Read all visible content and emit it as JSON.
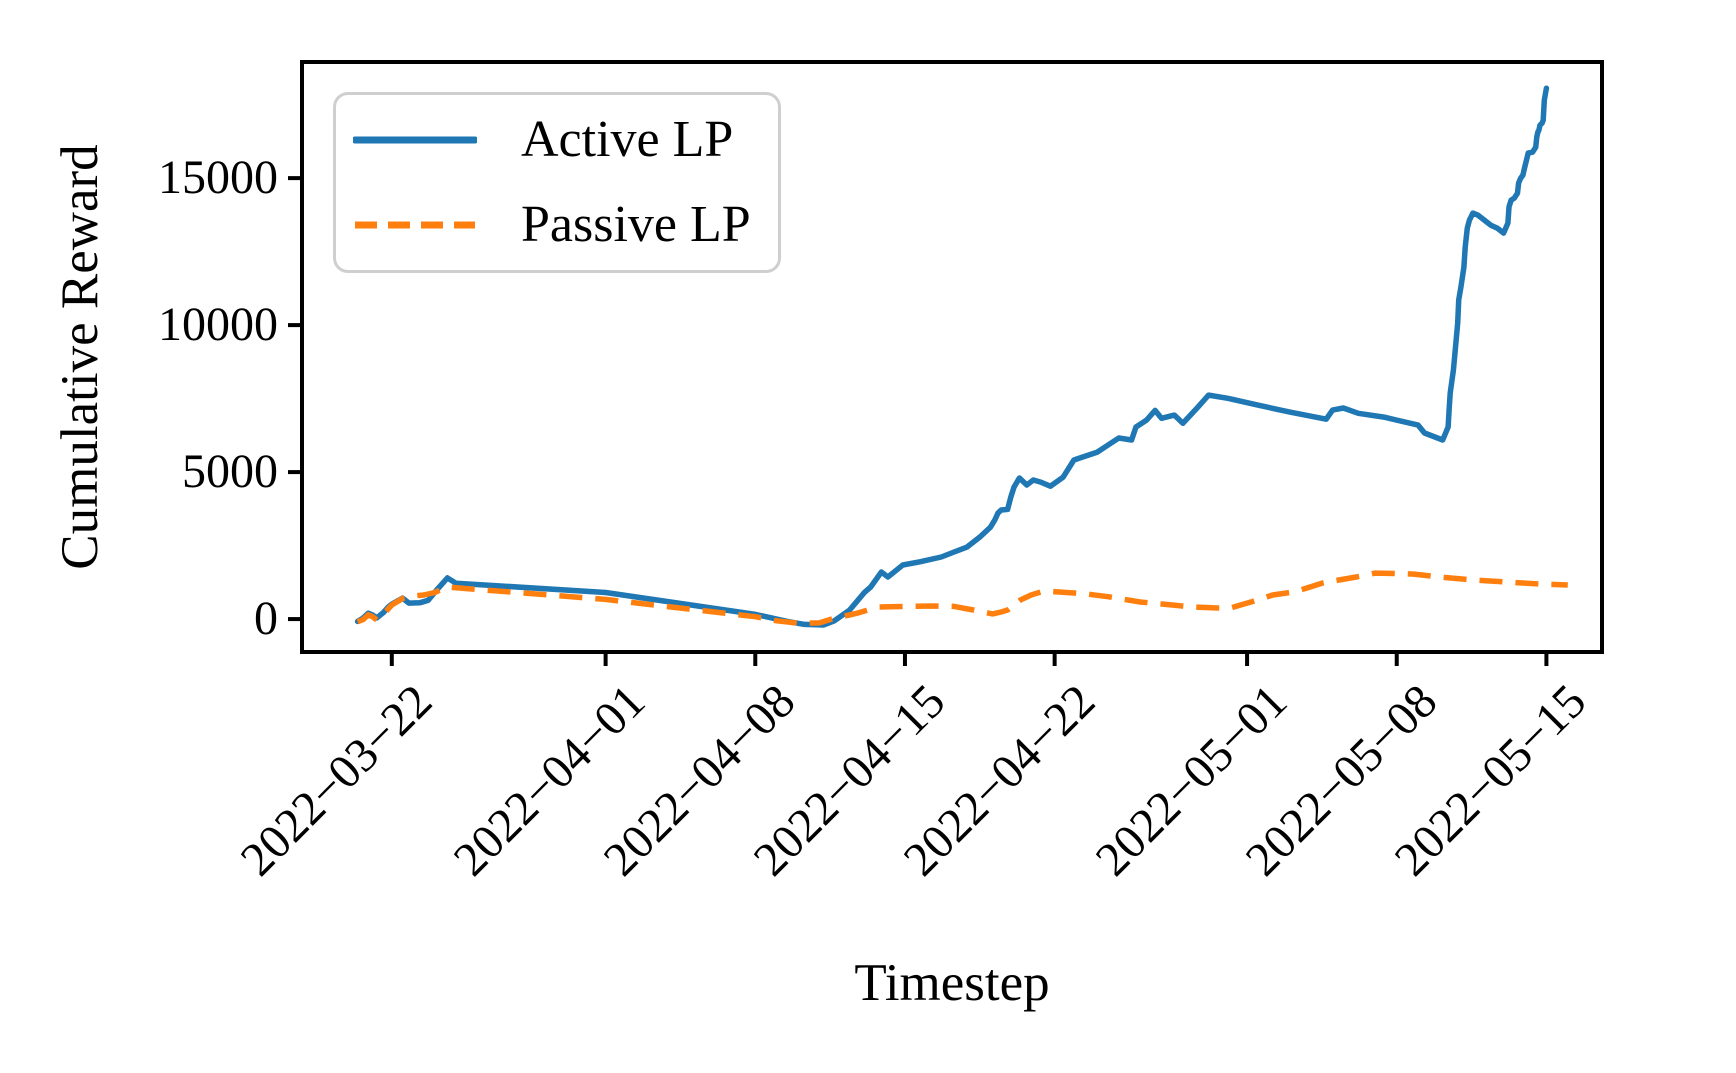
{
  "figure": {
    "xlabel": "Timestep",
    "ylabel": "Cumulative Reward",
    "background_color": "#ffffff",
    "spine_color": "#000000",
    "legend_border_color": "#cfcfcf"
  },
  "chart_data": {
    "type": "line",
    "title": "",
    "xlabel": "Timestep",
    "ylabel": "Cumulative Reward",
    "grid": false,
    "legend_position": "upper left",
    "x_unit": "days since 2022-03-22 (fractional, read from plot)",
    "x_tick_labels": [
      "2022−03−22",
      "2022−04−01",
      "2022−04−08",
      "2022−04−15",
      "2022−04−22",
      "2022−05−01",
      "2022−05−08",
      "2022−05−15"
    ],
    "y_ticks": [
      0,
      5000,
      10000,
      15000
    ],
    "xlim_days": [
      -4.2,
      56.6
    ],
    "ylim": [
      -1120,
      18950
    ],
    "series": [
      {
        "name": "Active LP",
        "color": "#1f77b4",
        "dash": "solid",
        "points": [
          [
            -1.6,
            -80
          ],
          [
            -1.35,
            30
          ],
          [
            -1.1,
            200
          ],
          [
            -0.9,
            140
          ],
          [
            -0.7,
            40
          ],
          [
            -0.4,
            220
          ],
          [
            -0.15,
            420
          ],
          [
            0,
            510
          ],
          [
            0.5,
            715
          ],
          [
            0.8,
            545
          ],
          [
            1.3,
            555
          ],
          [
            1.7,
            640
          ],
          [
            2.1,
            990
          ],
          [
            2.6,
            1400
          ],
          [
            3.0,
            1220
          ],
          [
            10,
            905
          ],
          [
            17,
            160
          ],
          [
            18.5,
            -80
          ],
          [
            19.3,
            -180
          ],
          [
            20.2,
            -200
          ],
          [
            20.7,
            -60
          ],
          [
            21.4,
            300
          ],
          [
            22.1,
            900
          ],
          [
            22.4,
            1090
          ],
          [
            22.9,
            1600
          ],
          [
            23.2,
            1430
          ],
          [
            23.9,
            1840
          ],
          [
            24.7,
            1950
          ],
          [
            25.7,
            2110
          ],
          [
            26.3,
            2280
          ],
          [
            26.9,
            2450
          ],
          [
            27.5,
            2790
          ],
          [
            28.0,
            3130
          ],
          [
            28.2,
            3370
          ],
          [
            28.35,
            3610
          ],
          [
            28.5,
            3710
          ],
          [
            28.8,
            3730
          ],
          [
            28.95,
            4150
          ],
          [
            29.1,
            4490
          ],
          [
            29.35,
            4800
          ],
          [
            29.7,
            4560
          ],
          [
            30.0,
            4730
          ],
          [
            30.35,
            4660
          ],
          [
            30.8,
            4520
          ],
          [
            31.4,
            4830
          ],
          [
            31.9,
            5410
          ],
          [
            32.3,
            5510
          ],
          [
            33.0,
            5680
          ],
          [
            33.5,
            5920
          ],
          [
            34.0,
            6160
          ],
          [
            34.6,
            6090
          ],
          [
            34.8,
            6530
          ],
          [
            35.3,
            6770
          ],
          [
            35.7,
            7100
          ],
          [
            36.0,
            6830
          ],
          [
            36.6,
            6940
          ],
          [
            37.0,
            6660
          ],
          [
            37.7,
            7210
          ],
          [
            38.2,
            7620
          ],
          [
            39.1,
            7510
          ],
          [
            40.5,
            7280
          ],
          [
            42.0,
            7040
          ],
          [
            43.7,
            6800
          ],
          [
            44.0,
            7110
          ],
          [
            44.5,
            7180
          ],
          [
            45.2,
            7000
          ],
          [
            46.4,
            6870
          ],
          [
            48.0,
            6600
          ],
          [
            48.3,
            6330
          ],
          [
            49.15,
            6090
          ],
          [
            49.4,
            6530
          ],
          [
            49.45,
            7110
          ],
          [
            49.5,
            7690
          ],
          [
            49.65,
            8470
          ],
          [
            49.75,
            9250
          ],
          [
            49.85,
            10070
          ],
          [
            49.9,
            10850
          ],
          [
            50.0,
            11290
          ],
          [
            50.14,
            11970
          ],
          [
            50.2,
            12650
          ],
          [
            50.3,
            13300
          ],
          [
            50.4,
            13570
          ],
          [
            50.56,
            13810
          ],
          [
            50.8,
            13740
          ],
          [
            51.1,
            13570
          ],
          [
            51.4,
            13400
          ],
          [
            51.7,
            13300
          ],
          [
            52.0,
            13130
          ],
          [
            52.2,
            13470
          ],
          [
            52.25,
            14020
          ],
          [
            52.35,
            14250
          ],
          [
            52.5,
            14320
          ],
          [
            52.65,
            14490
          ],
          [
            52.7,
            14830
          ],
          [
            52.8,
            15000
          ],
          [
            52.9,
            15100
          ],
          [
            52.95,
            15270
          ],
          [
            53.1,
            15710
          ],
          [
            53.15,
            15850
          ],
          [
            53.35,
            15880
          ],
          [
            53.5,
            16050
          ],
          [
            53.55,
            16400
          ],
          [
            53.6,
            16570
          ],
          [
            53.65,
            16630
          ],
          [
            53.7,
            16800
          ],
          [
            53.8,
            16870
          ],
          [
            53.85,
            16970
          ],
          [
            53.9,
            17650
          ],
          [
            54,
            18060
          ]
        ]
      },
      {
        "name": "Passive LP",
        "color": "#ff7f0e",
        "dash": "dashed",
        "points": [
          [
            -1.6,
            -90
          ],
          [
            -1.35,
            -20
          ],
          [
            -1.1,
            150
          ],
          [
            -0.9,
            80
          ],
          [
            -0.7,
            -30
          ],
          [
            -0.4,
            160
          ],
          [
            -0.15,
            360
          ],
          [
            0,
            480
          ],
          [
            0.5,
            700
          ],
          [
            1.0,
            790
          ],
          [
            1.5,
            820
          ],
          [
            2.0,
            900
          ],
          [
            2.55,
            1090
          ],
          [
            10,
            670
          ],
          [
            17,
            80
          ],
          [
            18,
            -60
          ],
          [
            19,
            -140
          ],
          [
            20,
            -130
          ],
          [
            20.7,
            30
          ],
          [
            21.4,
            140
          ],
          [
            21.8,
            205
          ],
          [
            22.4,
            340
          ],
          [
            22.8,
            410
          ],
          [
            24,
            430
          ],
          [
            25.3,
            445
          ],
          [
            26.3,
            430
          ],
          [
            27.2,
            310
          ],
          [
            27.7,
            230
          ],
          [
            28.1,
            175
          ],
          [
            28.5,
            240
          ],
          [
            28.8,
            310
          ],
          [
            29.4,
            650
          ],
          [
            29.9,
            820
          ],
          [
            30.5,
            950
          ],
          [
            31.2,
            920
          ],
          [
            32.3,
            870
          ],
          [
            33.5,
            760
          ],
          [
            35,
            580
          ],
          [
            36.5,
            480
          ],
          [
            37.4,
            410
          ],
          [
            38.5,
            380
          ],
          [
            39.2,
            375
          ],
          [
            40.5,
            650
          ],
          [
            41.2,
            820
          ],
          [
            42.0,
            905
          ],
          [
            42.5,
            990
          ],
          [
            43.5,
            1220
          ],
          [
            44.3,
            1330
          ],
          [
            45.1,
            1430
          ],
          [
            46.0,
            1565
          ],
          [
            47.0,
            1550
          ],
          [
            47.8,
            1530
          ],
          [
            49.0,
            1430
          ],
          [
            50.6,
            1330
          ],
          [
            52.1,
            1260
          ],
          [
            53.5,
            1200
          ],
          [
            55.0,
            1160
          ]
        ]
      }
    ]
  }
}
